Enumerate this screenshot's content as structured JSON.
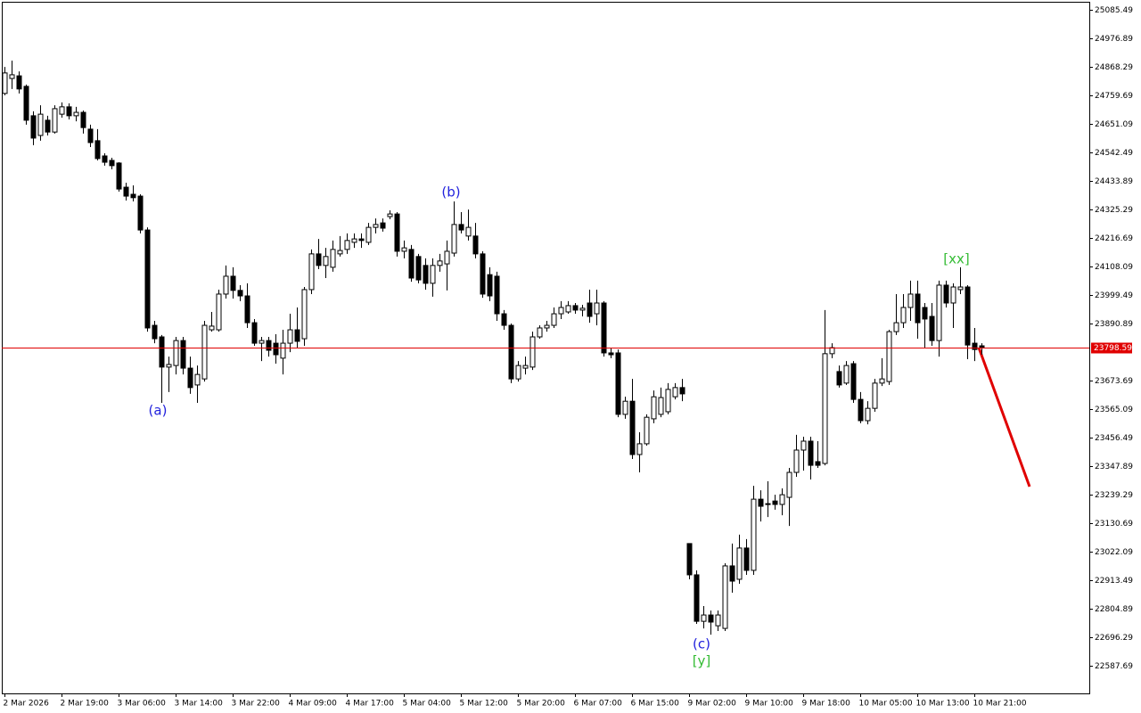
{
  "chart_data": {
    "type": "candlestick",
    "categories": [
      "2 Mar 2026",
      null,
      null,
      null,
      null,
      null,
      null,
      null,
      "2 Mar 19:00",
      null,
      null,
      null,
      null,
      null,
      null,
      null,
      "3 Mar 06:00",
      null,
      null,
      null,
      null,
      null,
      null,
      null,
      "3 Mar 14:00",
      null,
      null,
      null,
      null,
      null,
      null,
      null,
      "3 Mar 22:00",
      null,
      null,
      null,
      null,
      null,
      null,
      null,
      "4 Mar 09:00",
      null,
      null,
      null,
      null,
      null,
      null,
      null,
      "4 Mar 17:00",
      null,
      null,
      null,
      null,
      null,
      null,
      null,
      "5 Mar 04:00",
      null,
      null,
      null,
      null,
      null,
      null,
      null,
      "5 Mar 12:00",
      null,
      null,
      null,
      null,
      null,
      null,
      null,
      "5 Mar 20:00",
      null,
      null,
      null,
      null,
      null,
      null,
      null,
      "6 Mar 07:00",
      null,
      null,
      null,
      null,
      null,
      null,
      null,
      "6 Mar 15:00",
      null,
      null,
      null,
      null,
      null,
      null,
      null,
      "9 Mar 02:00",
      null,
      null,
      null,
      null,
      null,
      null,
      null,
      "9 Mar 10:00",
      null,
      null,
      null,
      null,
      null,
      null,
      null,
      "9 Mar 18:00",
      null,
      null,
      null,
      null,
      null,
      null,
      null,
      "10 Mar 05:00",
      null,
      null,
      null,
      null,
      null,
      null,
      null,
      "10 Mar 13:00",
      null,
      null,
      null,
      null,
      null,
      null,
      null,
      "10 Mar 21:00",
      null
    ],
    "open": [
      24767,
      24824,
      24834,
      24794,
      24682,
      24607,
      24665,
      24620,
      24688,
      24716,
      24682,
      24695,
      24631,
      24587,
      24529,
      24512,
      24502,
      24410,
      24383,
      24376,
      24247,
      23884,
      23840,
      23725,
      23731,
      23826,
      23721,
      23657,
      23680,
      23867,
      23867,
      24003,
      24071,
      24017,
      23996,
      23894,
      23816,
      23826,
      23816,
      23759,
      23816,
      23867,
      23833,
      24020,
      24156,
      24112,
      24105,
      24156,
      24173,
      24200,
      24213,
      24200,
      24257,
      24274,
      24298,
      24308,
      24166,
      24173,
      24146,
      24112,
      24044,
      24112,
      24118,
      24159,
      24268,
      24224,
      24224,
      24156,
      24077,
      24071,
      23928,
      23884,
      23680,
      23721,
      23725,
      23840,
      23874,
      23884,
      23928,
      23935,
      23959,
      23942,
      23969,
      23928,
      23969,
      23779,
      23779,
      23545,
      23595,
      23392,
      23433,
      23528,
      23545,
      23555,
      23612,
      23647,
      23053,
      22934,
      22757,
      22781,
      22740,
      22730,
      22968,
      22917,
      23036,
      22951,
      23222,
      23202,
      23215,
      23202,
      23229,
      23324,
      23409,
      23443,
      23365,
      23358,
      23776,
      23708,
      23664,
      23738,
      23602,
      23521,
      23568,
      23664,
      23670,
      23860,
      23894,
      23952,
      24003,
      23952,
      23918,
      23826,
      24037,
      23969,
      24020,
      24030,
      23816,
      23806
    ],
    "high": [
      24868,
      24892,
      24851,
      24801,
      24699,
      24722,
      24682,
      24722,
      24733,
      24729,
      24716,
      24702,
      24648,
      24631,
      24539,
      24522,
      24505,
      24427,
      24417,
      24383,
      24257,
      23901,
      23847,
      23765,
      23840,
      23840,
      23765,
      23731,
      23901,
      23935,
      24020,
      24112,
      24105,
      24037,
      24044,
      23908,
      23840,
      23840,
      23850,
      23867,
      23928,
      23952,
      24030,
      24173,
      24213,
      24179,
      24207,
      24224,
      24234,
      24234,
      24234,
      24274,
      24291,
      24291,
      24322,
      24315,
      24207,
      24190,
      24156,
      24139,
      24139,
      24156,
      24207,
      24356,
      24315,
      24325,
      24274,
      24166,
      24105,
      24088,
      23942,
      23891,
      23748,
      23765,
      23860,
      23884,
      23901,
      23952,
      23976,
      23976,
      23969,
      23962,
      24020,
      24020,
      23976,
      23799,
      23792,
      23612,
      23680,
      23477,
      23545,
      23636,
      23647,
      23664,
      23664,
      23680,
      23053,
      22951,
      22815,
      22798,
      22798,
      22978,
      23053,
      23087,
      23070,
      23273,
      23256,
      23290,
      23239,
      23263,
      23341,
      23467,
      23460,
      23460,
      23443,
      23942,
      23816,
      23731,
      23748,
      23748,
      23630,
      23595,
      23680,
      23759,
      23867,
      24003,
      24003,
      24054,
      24054,
      23969,
      23969,
      24054,
      24054,
      24044,
      24105,
      24037,
      23874,
      23816
    ],
    "low": [
      24760,
      24784,
      24767,
      24648,
      24570,
      24587,
      24607,
      24614,
      24675,
      24668,
      24661,
      24614,
      24563,
      24512,
      24492,
      24478,
      24393,
      24359,
      24356,
      24234,
      23860,
      23816,
      23589,
      23630,
      23697,
      23697,
      23623,
      23589,
      23670,
      23860,
      23860,
      23986,
      23986,
      23976,
      23874,
      23806,
      23748,
      23765,
      23738,
      23697,
      23782,
      23799,
      23806,
      24003,
      24098,
      24064,
      24088,
      24146,
      24156,
      24179,
      24179,
      24190,
      24234,
      24241,
      24288,
      24146,
      24139,
      24050,
      24044,
      24020,
      23993,
      24088,
      24017,
      24146,
      24234,
      24207,
      24139,
      23989,
      23976,
      23901,
      23867,
      23664,
      23670,
      23697,
      23714,
      23833,
      23860,
      23874,
      23908,
      23928,
      23928,
      23918,
      23894,
      23884,
      23765,
      23759,
      23534,
      23528,
      23375,
      23324,
      23426,
      23511,
      23534,
      23545,
      23602,
      23595,
      22917,
      22747,
      22730,
      22706,
      22720,
      22720,
      22866,
      22900,
      22934,
      22934,
      23137,
      23154,
      23182,
      23161,
      23120,
      23307,
      23331,
      23297,
      23341,
      23351,
      23759,
      23647,
      23657,
      23589,
      23511,
      23507,
      23555,
      23653,
      23657,
      23847,
      23874,
      23901,
      23833,
      23799,
      23806,
      23765,
      23952,
      23874,
      24003,
      23755,
      23748,
      23772
    ],
    "close": [
      24845,
      24838,
      24784,
      24665,
      24597,
      24688,
      24620,
      24709,
      24716,
      24682,
      24695,
      24637,
      24580,
      24519,
      24505,
      24492,
      24403,
      24376,
      24370,
      24247,
      23874,
      23833,
      23725,
      23735,
      23826,
      23721,
      23647,
      23697,
      23884,
      23881,
      24003,
      24071,
      24017,
      23996,
      23894,
      23816,
      23826,
      23789,
      23772,
      23816,
      23867,
      23823,
      24020,
      24156,
      24112,
      24146,
      24173,
      24169,
      24207,
      24213,
      24207,
      24257,
      24268,
      24254,
      24308,
      24166,
      24179,
      24064,
      24057,
      24044,
      24112,
      24129,
      24166,
      24268,
      24247,
      24257,
      24156,
      24003,
      23996,
      23928,
      23884,
      23680,
      23731,
      23731,
      23840,
      23874,
      23884,
      23928,
      23952,
      23959,
      23942,
      23949,
      23918,
      23969,
      23779,
      23772,
      23545,
      23595,
      23392,
      23433,
      23534,
      23612,
      23609,
      23640,
      23647,
      23623,
      22934,
      22757,
      22781,
      22754,
      22781,
      22968,
      22910,
      23036,
      22951,
      23222,
      23195,
      23205,
      23202,
      23239,
      23324,
      23409,
      23443,
      23351,
      23351,
      23776,
      23799,
      23657,
      23731,
      23602,
      23521,
      23568,
      23664,
      23680,
      23860,
      23894,
      23952,
      24003,
      23894,
      23908,
      23826,
      24037,
      23969,
      24030,
      24030,
      23809,
      23792,
      23798.59
    ],
    "bull_color": "#ffffff",
    "bear_color": "#000000",
    "ylim": [
      22482.5,
      25116.0
    ],
    "yticks": [
      25085.49,
      24976.89,
      24868.29,
      24759.69,
      24651.09,
      24542.49,
      24433.89,
      24325.29,
      24216.69,
      24108.09,
      23999.49,
      23890.89,
      23673.69,
      23565.09,
      23456.49,
      23347.89,
      23239.29,
      23130.69,
      23022.09,
      22913.49,
      22804.89,
      22696.29,
      22587.69
    ],
    "current_price": 23798.59,
    "current_price_color": "#e00000",
    "annotations": [
      {
        "text": "(a)",
        "color": "#2222dd"
      },
      {
        "text": "(b)",
        "color": "#2222dd"
      },
      {
        "text": "(c)",
        "color": "#2222dd"
      },
      {
        "text": "[y]",
        "color": "#33bb33"
      },
      {
        "text": "[xx]",
        "color": "#33bb33"
      }
    ]
  }
}
